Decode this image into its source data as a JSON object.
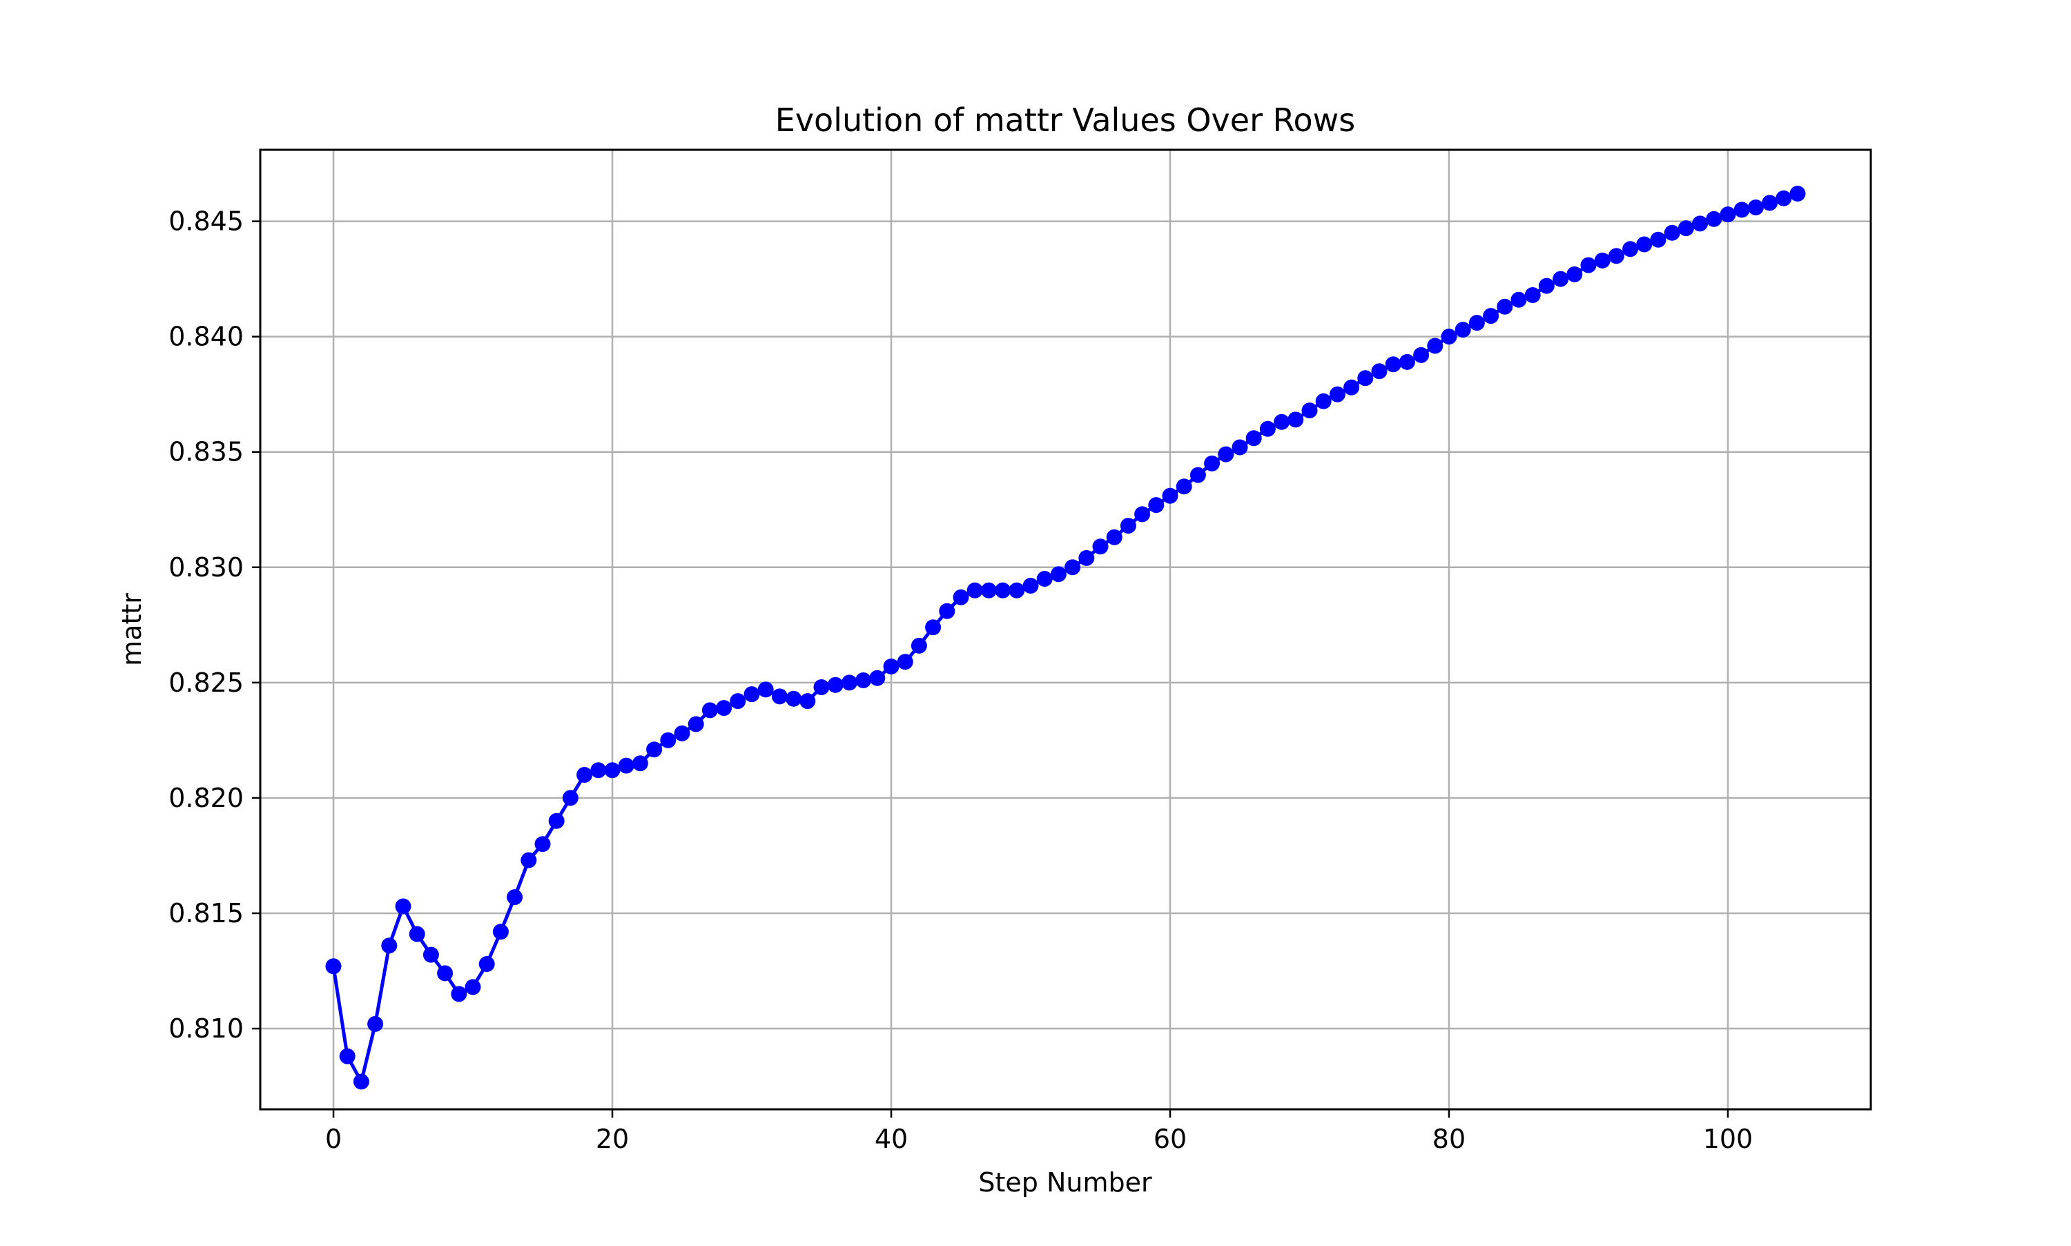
{
  "chart_data": {
    "type": "line",
    "title": "Evolution of mattr Values Over Rows",
    "xlabel": "Step Number",
    "ylabel": "mattr",
    "xlim": [
      -5.25,
      110.25
    ],
    "ylim": [
      0.8065,
      0.8481
    ],
    "xticks": [
      0,
      20,
      40,
      60,
      80,
      100
    ],
    "yticks": [
      0.81,
      0.815,
      0.82,
      0.825,
      0.83,
      0.835,
      0.84,
      0.845
    ],
    "xtick_labels": [
      "0",
      "20",
      "40",
      "60",
      "80",
      "100"
    ],
    "ytick_labels": [
      "0.810",
      "0.815",
      "0.820",
      "0.825",
      "0.830",
      "0.835",
      "0.840",
      "0.845"
    ],
    "grid": true,
    "legend": null,
    "series": [
      {
        "color": "#0000ff",
        "marker": "circle",
        "x": [
          0,
          1,
          2,
          3,
          4,
          5,
          6,
          7,
          8,
          9,
          10,
          11,
          12,
          13,
          14,
          15,
          16,
          17,
          18,
          19,
          20,
          21,
          22,
          23,
          24,
          25,
          26,
          27,
          28,
          29,
          30,
          31,
          32,
          33,
          34,
          35,
          36,
          37,
          38,
          39,
          40,
          41,
          42,
          43,
          44,
          45,
          46,
          47,
          48,
          49,
          50,
          51,
          52,
          53,
          54,
          55,
          56,
          57,
          58,
          59,
          60,
          61,
          62,
          63,
          64,
          65,
          66,
          67,
          68,
          69,
          70,
          71,
          72,
          73,
          74,
          75,
          76,
          77,
          78,
          79,
          80,
          81,
          82,
          83,
          84,
          85,
          86,
          87,
          88,
          89,
          90,
          91,
          92,
          93,
          94,
          95,
          96,
          97,
          98,
          99,
          100,
          101,
          102,
          103,
          104,
          105
        ],
        "values": [
          0.8127,
          0.8088,
          0.8077,
          0.8102,
          0.8136,
          0.8153,
          0.8141,
          0.8132,
          0.8124,
          0.8115,
          0.8118,
          0.8128,
          0.8142,
          0.8157,
          0.8173,
          0.818,
          0.819,
          0.82,
          0.821,
          0.8212,
          0.8212,
          0.8214,
          0.8215,
          0.8221,
          0.8225,
          0.8228,
          0.8232,
          0.8238,
          0.8239,
          0.8242,
          0.8245,
          0.8247,
          0.8244,
          0.8243,
          0.8242,
          0.8248,
          0.8249,
          0.825,
          0.8251,
          0.8252,
          0.8257,
          0.8259,
          0.8266,
          0.8274,
          0.8281,
          0.8287,
          0.829,
          0.829,
          0.829,
          0.829,
          0.8292,
          0.8295,
          0.8297,
          0.83,
          0.8304,
          0.8309,
          0.8313,
          0.8318,
          0.8323,
          0.8327,
          0.8331,
          0.8335,
          0.834,
          0.8345,
          0.8349,
          0.8352,
          0.8356,
          0.836,
          0.8363,
          0.8364,
          0.8368,
          0.8372,
          0.8375,
          0.8378,
          0.8382,
          0.8385,
          0.8388,
          0.8389,
          0.8392,
          0.8396,
          0.84,
          0.8403,
          0.8406,
          0.8409,
          0.8413,
          0.8416,
          0.8418,
          0.8422,
          0.8425,
          0.8427,
          0.8431,
          0.8433,
          0.8435,
          0.8438,
          0.844,
          0.8442,
          0.8445,
          0.8447,
          0.8449,
          0.8451,
          0.8453,
          0.8455,
          0.8456,
          0.8458,
          0.846,
          0.8462
        ]
      }
    ]
  }
}
